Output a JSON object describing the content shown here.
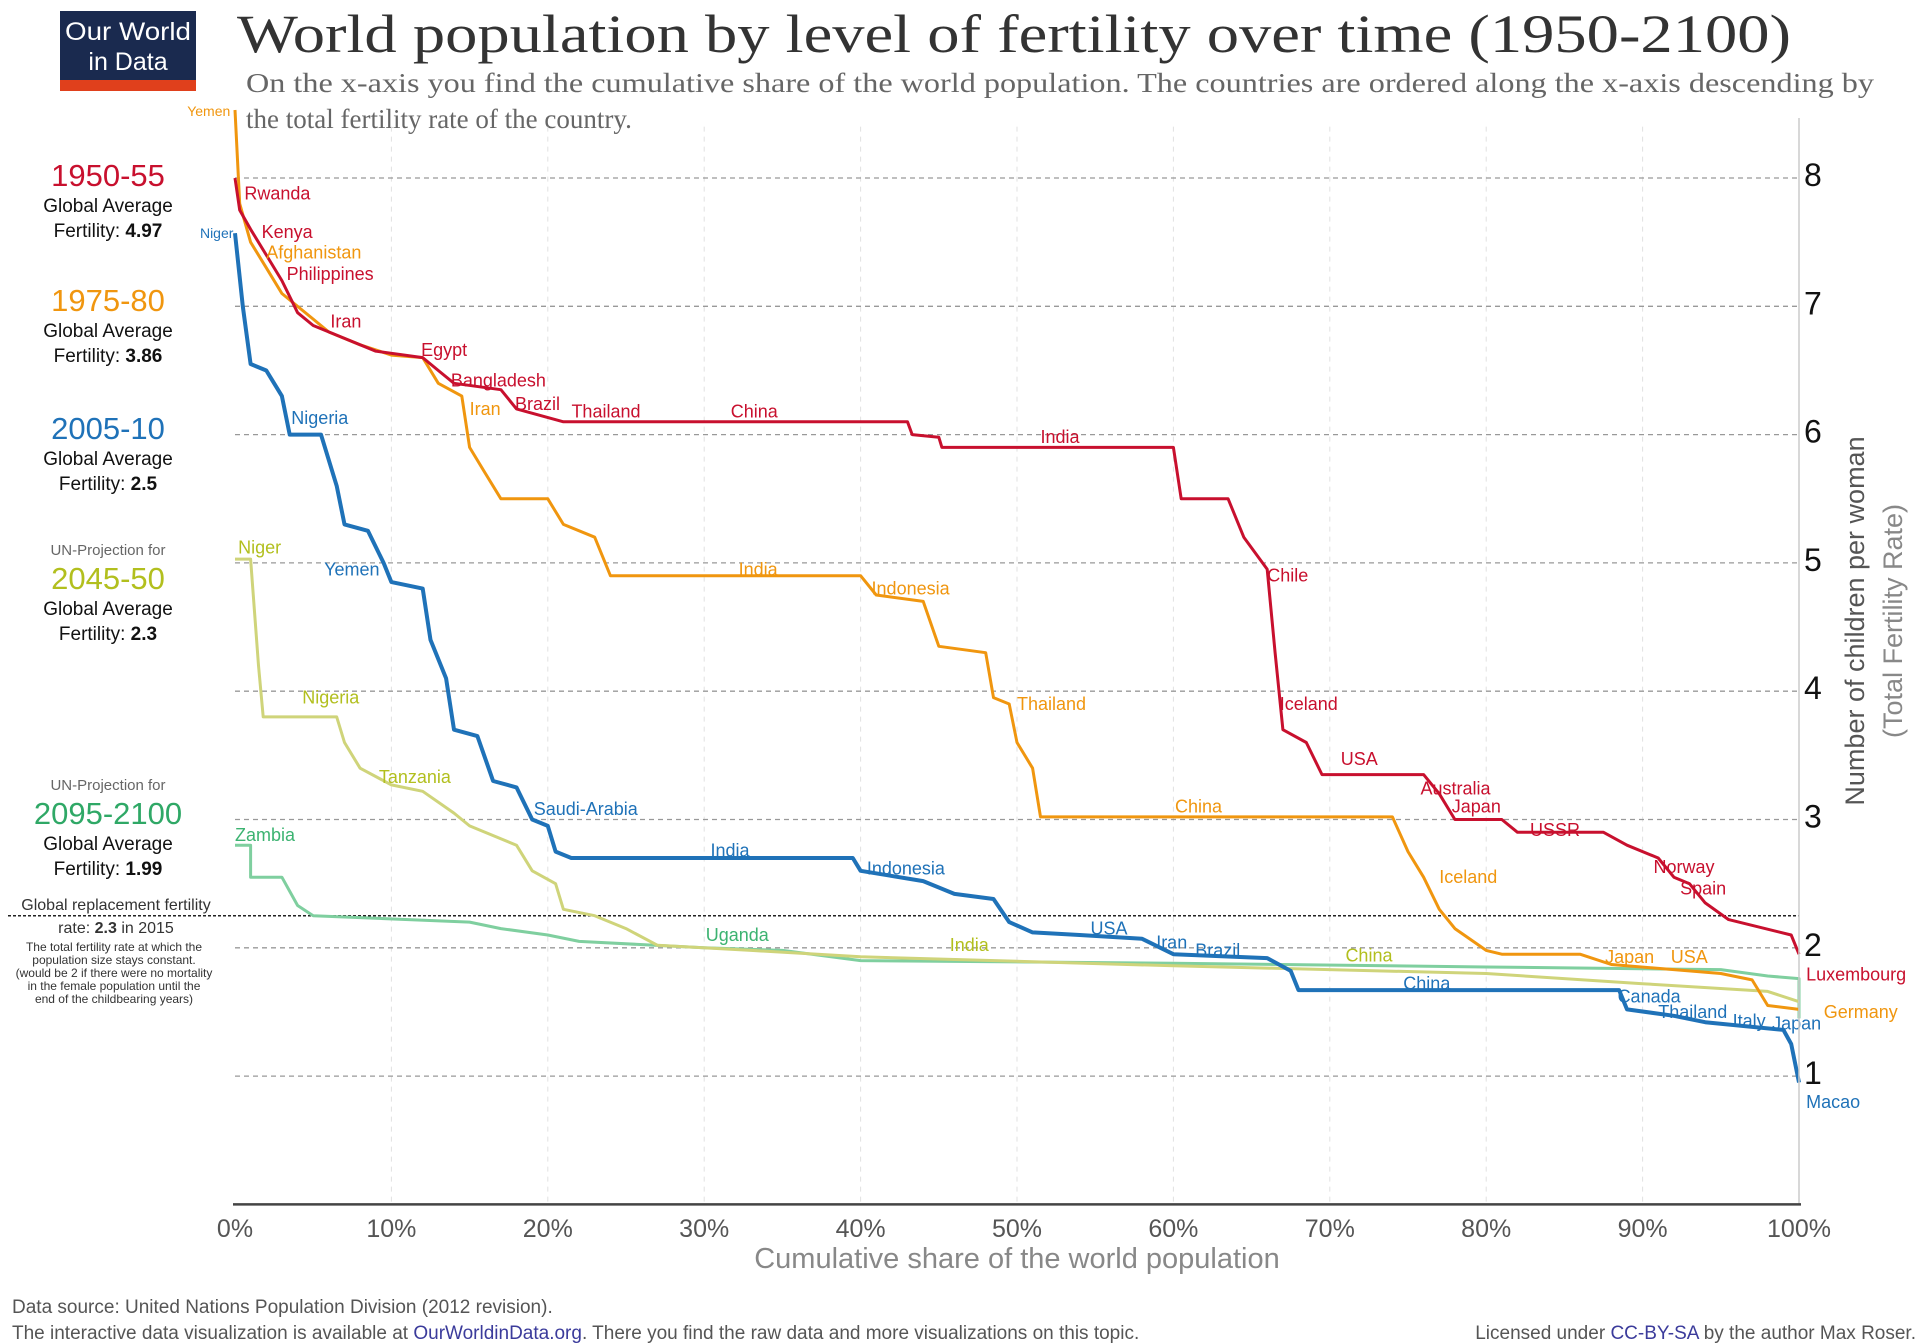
{
  "logo": {
    "line1": "Our World",
    "line2": "in Data",
    "bg": "#1a2a4f",
    "band": "#e0401c"
  },
  "title": "World population by level of fertility over time (1950-2100)",
  "subtitle": [
    "On the x-axis you find the cumulative share of the world population. The countries are ordered along the x-axis descending by",
    "the total fertility rate of the country."
  ],
  "legend_panels": [
    {
      "pre": "",
      "period": "1950-55",
      "avg_label": "Global Average",
      "fert_label": "Fertility:",
      "fert_value": "4.97",
      "color": "#c8102e"
    },
    {
      "pre": "",
      "period": "1975-80",
      "avg_label": "Global Average",
      "fert_label": "Fertility:",
      "fert_value": "3.86",
      "color": "#f0960f"
    },
    {
      "pre": "",
      "period": "2005-10",
      "avg_label": "Global Average",
      "fert_label": "Fertility:",
      "fert_value": "2.5",
      "color": "#1f72b8"
    },
    {
      "pre": "UN-Projection for",
      "period": "2045-50",
      "avg_label": "Global Average",
      "fert_label": "Fertility:",
      "fert_value": "2.3",
      "color": "#b2bf1e"
    },
    {
      "pre": "UN-Projection for",
      "period": "2095-2100",
      "avg_label": "Global Average",
      "fert_label": "Fertility:",
      "fert_value": "1.99",
      "color": "#2fa866"
    }
  ],
  "replacement": {
    "line1": "Global replacement fertility",
    "line2_pre": "rate: ",
    "line2_value": "2.3",
    "line2_post": " in 2015",
    "value": 2.25,
    "notes": [
      "The total fertility rate at which the",
      "population size stays constant.",
      "(would be 2 if there were no mortality",
      "in the female population until the",
      "end of the childbearing years)"
    ]
  },
  "chart_data": {
    "type": "line",
    "xlabel": "Cumulative share of the world population",
    "ylabel": "Number of children per woman",
    "ylabel2": "(Total Fertility Rate)",
    "xlim": [
      0,
      100
    ],
    "ylim": [
      0,
      8
    ],
    "x_ticks": [
      "0%",
      "10%",
      "20%",
      "30%",
      "40%",
      "50%",
      "60%",
      "70%",
      "80%",
      "90%",
      "100%"
    ],
    "y_ticks": [
      "1",
      "2",
      "3",
      "4",
      "5",
      "6",
      "7",
      "8"
    ],
    "grid": "horizontal dashed at each integer; faint vertical dashed every 10%",
    "series": [
      {
        "name": "1950-55",
        "color": "#c8102e",
        "width": 3,
        "points": [
          [
            0,
            8.0
          ],
          [
            0.3,
            7.75
          ],
          [
            1,
            7.6
          ],
          [
            2,
            7.4
          ],
          [
            3,
            7.2
          ],
          [
            4,
            6.95
          ],
          [
            5,
            6.85
          ],
          [
            7,
            6.75
          ],
          [
            9,
            6.65
          ],
          [
            12,
            6.6
          ],
          [
            13,
            6.5
          ],
          [
            14,
            6.4
          ],
          [
            17,
            6.35
          ],
          [
            18,
            6.2
          ],
          [
            21,
            6.1
          ],
          [
            43,
            6.1
          ],
          [
            43.3,
            6.0
          ],
          [
            45,
            5.98
          ],
          [
            45.2,
            5.9
          ],
          [
            60,
            5.9
          ],
          [
            60.5,
            5.5
          ],
          [
            63.5,
            5.5
          ],
          [
            64.5,
            5.2
          ],
          [
            66,
            4.95
          ],
          [
            66.5,
            4.3
          ],
          [
            67,
            3.7
          ],
          [
            68.5,
            3.6
          ],
          [
            69.5,
            3.35
          ],
          [
            76,
            3.35
          ],
          [
            77,
            3.2
          ],
          [
            78,
            3.0
          ],
          [
            81,
            3.0
          ],
          [
            82,
            2.9
          ],
          [
            87.5,
            2.9
          ],
          [
            89,
            2.8
          ],
          [
            91,
            2.7
          ],
          [
            92,
            2.55
          ],
          [
            93,
            2.5
          ],
          [
            94,
            2.35
          ],
          [
            95.5,
            2.22
          ],
          [
            99.5,
            2.1
          ],
          [
            100,
            1.95
          ]
        ]
      },
      {
        "name": "1975-80",
        "color": "#f0960f",
        "width": 3,
        "points": [
          [
            0,
            8.53
          ],
          [
            0.3,
            7.8
          ],
          [
            1,
            7.5
          ],
          [
            2,
            7.3
          ],
          [
            3,
            7.1
          ],
          [
            5,
            6.9
          ],
          [
            6,
            6.8
          ],
          [
            8,
            6.7
          ],
          [
            10,
            6.62
          ],
          [
            12,
            6.6
          ],
          [
            13,
            6.4
          ],
          [
            14.5,
            6.3
          ],
          [
            15,
            5.9
          ],
          [
            16,
            5.7
          ],
          [
            17,
            5.5
          ],
          [
            20,
            5.5
          ],
          [
            21,
            5.3
          ],
          [
            23,
            5.2
          ],
          [
            24,
            4.9
          ],
          [
            40,
            4.9
          ],
          [
            41,
            4.75
          ],
          [
            44,
            4.7
          ],
          [
            45,
            4.35
          ],
          [
            48,
            4.3
          ],
          [
            48.5,
            3.95
          ],
          [
            49.5,
            3.9
          ],
          [
            50,
            3.6
          ],
          [
            51,
            3.4
          ],
          [
            51.5,
            3.02
          ],
          [
            74,
            3.02
          ],
          [
            75,
            2.75
          ],
          [
            76,
            2.55
          ],
          [
            77,
            2.3
          ],
          [
            78,
            2.15
          ],
          [
            80,
            1.98
          ],
          [
            81,
            1.95
          ],
          [
            86,
            1.95
          ],
          [
            88,
            1.87
          ],
          [
            95,
            1.8
          ],
          [
            97,
            1.75
          ],
          [
            98,
            1.55
          ],
          [
            100,
            1.52
          ]
        ]
      },
      {
        "name": "2005-10",
        "color": "#1f72b8",
        "width": 4,
        "points": [
          [
            0,
            7.57
          ],
          [
            0.5,
            7.0
          ],
          [
            1,
            6.55
          ],
          [
            2,
            6.5
          ],
          [
            3,
            6.3
          ],
          [
            3.5,
            6.0
          ],
          [
            5.5,
            6.0
          ],
          [
            6.5,
            5.6
          ],
          [
            7,
            5.3
          ],
          [
            8.5,
            5.25
          ],
          [
            9.5,
            5.0
          ],
          [
            10,
            4.85
          ],
          [
            12,
            4.8
          ],
          [
            12.5,
            4.4
          ],
          [
            13.5,
            4.1
          ],
          [
            14,
            3.7
          ],
          [
            15.5,
            3.65
          ],
          [
            16.5,
            3.3
          ],
          [
            18,
            3.25
          ],
          [
            19,
            3.0
          ],
          [
            20,
            2.95
          ],
          [
            20.5,
            2.75
          ],
          [
            21.5,
            2.7
          ],
          [
            39.5,
            2.7
          ],
          [
            40,
            2.6
          ],
          [
            44,
            2.52
          ],
          [
            46,
            2.42
          ],
          [
            48.5,
            2.38
          ],
          [
            49.5,
            2.2
          ],
          [
            51,
            2.12
          ],
          [
            54,
            2.1
          ],
          [
            58,
            2.07
          ],
          [
            60,
            1.95
          ],
          [
            66,
            1.92
          ],
          [
            67.5,
            1.82
          ],
          [
            68,
            1.67
          ],
          [
            88.5,
            1.67
          ],
          [
            89,
            1.52
          ],
          [
            92,
            1.47
          ],
          [
            94,
            1.42
          ],
          [
            99,
            1.36
          ],
          [
            99.5,
            1.25
          ],
          [
            100,
            0.95
          ]
        ]
      },
      {
        "name": "2045-50",
        "color": "#cfd47a",
        "width": 3,
        "points": [
          [
            0,
            5.03
          ],
          [
            1,
            5.03
          ],
          [
            1.5,
            4.2
          ],
          [
            1.8,
            3.8
          ],
          [
            6.5,
            3.8
          ],
          [
            7,
            3.6
          ],
          [
            8,
            3.4
          ],
          [
            10,
            3.27
          ],
          [
            12,
            3.22
          ],
          [
            14,
            3.05
          ],
          [
            15,
            2.95
          ],
          [
            18,
            2.8
          ],
          [
            19,
            2.6
          ],
          [
            20.5,
            2.5
          ],
          [
            21,
            2.3
          ],
          [
            23,
            2.25
          ],
          [
            25,
            2.15
          ],
          [
            27,
            2.02
          ],
          [
            33,
            1.98
          ],
          [
            40,
            1.93
          ],
          [
            60,
            1.86
          ],
          [
            80,
            1.8
          ],
          [
            90,
            1.72
          ],
          [
            98,
            1.66
          ],
          [
            100,
            1.58
          ]
        ]
      },
      {
        "name": "2095-2100",
        "color": "#7fcf9f",
        "width": 3,
        "points": [
          [
            0,
            2.8
          ],
          [
            1,
            2.8
          ],
          [
            1,
            2.55
          ],
          [
            3,
            2.55
          ],
          [
            4,
            2.33
          ],
          [
            5,
            2.25
          ],
          [
            15,
            2.2
          ],
          [
            17,
            2.15
          ],
          [
            20,
            2.1
          ],
          [
            22,
            2.05
          ],
          [
            30,
            2.0
          ],
          [
            35,
            1.98
          ],
          [
            40,
            1.9
          ],
          [
            60,
            1.88
          ],
          [
            80,
            1.85
          ],
          [
            95,
            1.83
          ],
          [
            98,
            1.78
          ],
          [
            100,
            1.76
          ],
          [
            100,
            1.45
          ]
        ]
      }
    ],
    "annotations": [
      {
        "s": 0,
        "text": "Rwanda",
        "x": 0.6,
        "y": 7.88
      },
      {
        "s": 0,
        "text": "Kenya",
        "x": 1.7,
        "y": 7.58
      },
      {
        "s": 0,
        "text": "Philippines",
        "x": 3.3,
        "y": 7.25
      },
      {
        "s": 0,
        "text": "Iran",
        "x": 6.1,
        "y": 6.88
      },
      {
        "s": 0,
        "text": "Egypt",
        "x": 11.9,
        "y": 6.66
      },
      {
        "s": 0,
        "text": "Bangladesh",
        "x": 13.8,
        "y": 6.42
      },
      {
        "s": 0,
        "text": "Brazil",
        "x": 17.9,
        "y": 6.24
      },
      {
        "s": 0,
        "text": "Thailand",
        "x": 21,
        "y": 6.18
      },
      {
        "s": 0,
        "text": "China",
        "x": 31.7,
        "y": 6.18
      },
      {
        "s": 0,
        "text": "India",
        "x": 51.5,
        "y": 5.98
      },
      {
        "s": 0,
        "text": "Chile",
        "x": 66,
        "y": 4.9
      },
      {
        "s": 0,
        "text": "Iceland",
        "x": 66.8,
        "y": 3.9
      },
      {
        "s": 0,
        "text": "USA",
        "x": 70.7,
        "y": 3.47
      },
      {
        "s": 0,
        "text": "Australia",
        "x": 75.8,
        "y": 3.24
      },
      {
        "s": 0,
        "text": "Japan",
        "x": 77.8,
        "y": 3.1
      },
      {
        "s": 0,
        "text": "USSR",
        "x": 82.8,
        "y": 2.92
      },
      {
        "s": 0,
        "text": "Norway",
        "x": 90.7,
        "y": 2.63
      },
      {
        "s": 0,
        "text": "Spain",
        "x": 92.4,
        "y": 2.5
      },
      {
        "s": 0,
        "text": "Luxembourg",
        "x": 100.2,
        "y": 1.9
      },
      {
        "s": 1,
        "text": "Yemen",
        "x": -0.3,
        "y": 8.53,
        "anchor": "end",
        "small": true
      },
      {
        "s": 1,
        "text": "Afghanistan",
        "x": 2,
        "y": 7.45
      },
      {
        "s": 1,
        "text": "Iran",
        "x": 15,
        "y": 6.2
      },
      {
        "s": 1,
        "text": "India",
        "x": 32.2,
        "y": 4.95
      },
      {
        "s": 1,
        "text": "Indonesia",
        "x": 40.7,
        "y": 4.8
      },
      {
        "s": 1,
        "text": "Thailand",
        "x": 50,
        "y": 3.9
      },
      {
        "s": 1,
        "text": "China",
        "x": 60.1,
        "y": 3.1
      },
      {
        "s": 1,
        "text": "Iceland",
        "x": 77,
        "y": 2.55
      },
      {
        "s": 1,
        "text": "Japan",
        "x": 87.6,
        "y": 1.93
      },
      {
        "s": 1,
        "text": "USA",
        "x": 91.8,
        "y": 1.93
      },
      {
        "s": 1,
        "text": "Germany",
        "x": 100.3,
        "y": 1.5
      },
      {
        "s": 2,
        "text": "Niger",
        "x": -0.1,
        "y": 7.58,
        "anchor": "end",
        "small": true
      },
      {
        "s": 2,
        "text": "Nigeria",
        "x": 3.6,
        "y": 6.13
      },
      {
        "s": 2,
        "text": "Yemen",
        "x": 5.7,
        "y": 4.95
      },
      {
        "s": 2,
        "text": "Saudi-Arabia",
        "x": 19.1,
        "y": 3.08
      },
      {
        "s": 2,
        "text": "India",
        "x": 30.4,
        "y": 2.76
      },
      {
        "s": 2,
        "text": "Indonesia",
        "x": 40.4,
        "y": 2.62
      },
      {
        "s": 2,
        "text": "USA",
        "x": 54.7,
        "y": 2.15
      },
      {
        "s": 2,
        "text": "Iran",
        "x": 58.9,
        "y": 2.04
      },
      {
        "s": 2,
        "text": "Brazil",
        "x": 61.4,
        "y": 1.98
      },
      {
        "s": 2,
        "text": "China",
        "x": 74.7,
        "y": 1.72
      },
      {
        "s": 2,
        "text": "Canada",
        "x": 88.4,
        "y": 1.62
      },
      {
        "s": 2,
        "text": "Thailand",
        "x": 91,
        "y": 1.5
      },
      {
        "s": 2,
        "text": "Italy",
        "x": 95.5,
        "y": 1.43
      },
      {
        "s": 2,
        "text": "Japan",
        "x": 97.9,
        "y": 1.41
      },
      {
        "s": 2,
        "text": "Macao",
        "x": 100.2,
        "y": 0.86
      },
      {
        "s": 3,
        "text": "Niger",
        "x": 0.2,
        "y": 5.12
      },
      {
        "s": 3,
        "text": "Nigeria",
        "x": 4.3,
        "y": 3.95
      },
      {
        "s": 3,
        "text": "Tanzania",
        "x": 9.2,
        "y": 3.33
      },
      {
        "s": 3,
        "text": "India",
        "x": 45.7,
        "y": 2.02
      },
      {
        "s": 3,
        "text": "China",
        "x": 71,
        "y": 1.94
      },
      {
        "s": 4,
        "text": "Zambia",
        "x": 0,
        "y": 2.88
      },
      {
        "s": 4,
        "text": "Uganda",
        "x": 30.1,
        "y": 2.1
      }
    ],
    "label_colors": [
      "#c8102e",
      "#f0960f",
      "#1f72b8",
      "#b2bf1e",
      "#3cb371"
    ]
  },
  "footer": {
    "source": "Data source: United Nations Population Division (2012 revision).",
    "interactive_pre": "The interactive data visualization is available at ",
    "interactive_link": "OurWorldinData.org",
    "interactive_post": ". There you find the raw data and more visualizations on this topic.",
    "license_pre": "Licensed under ",
    "license_link": "CC-BY-SA",
    "license_post": " by the author Max Roser."
  }
}
